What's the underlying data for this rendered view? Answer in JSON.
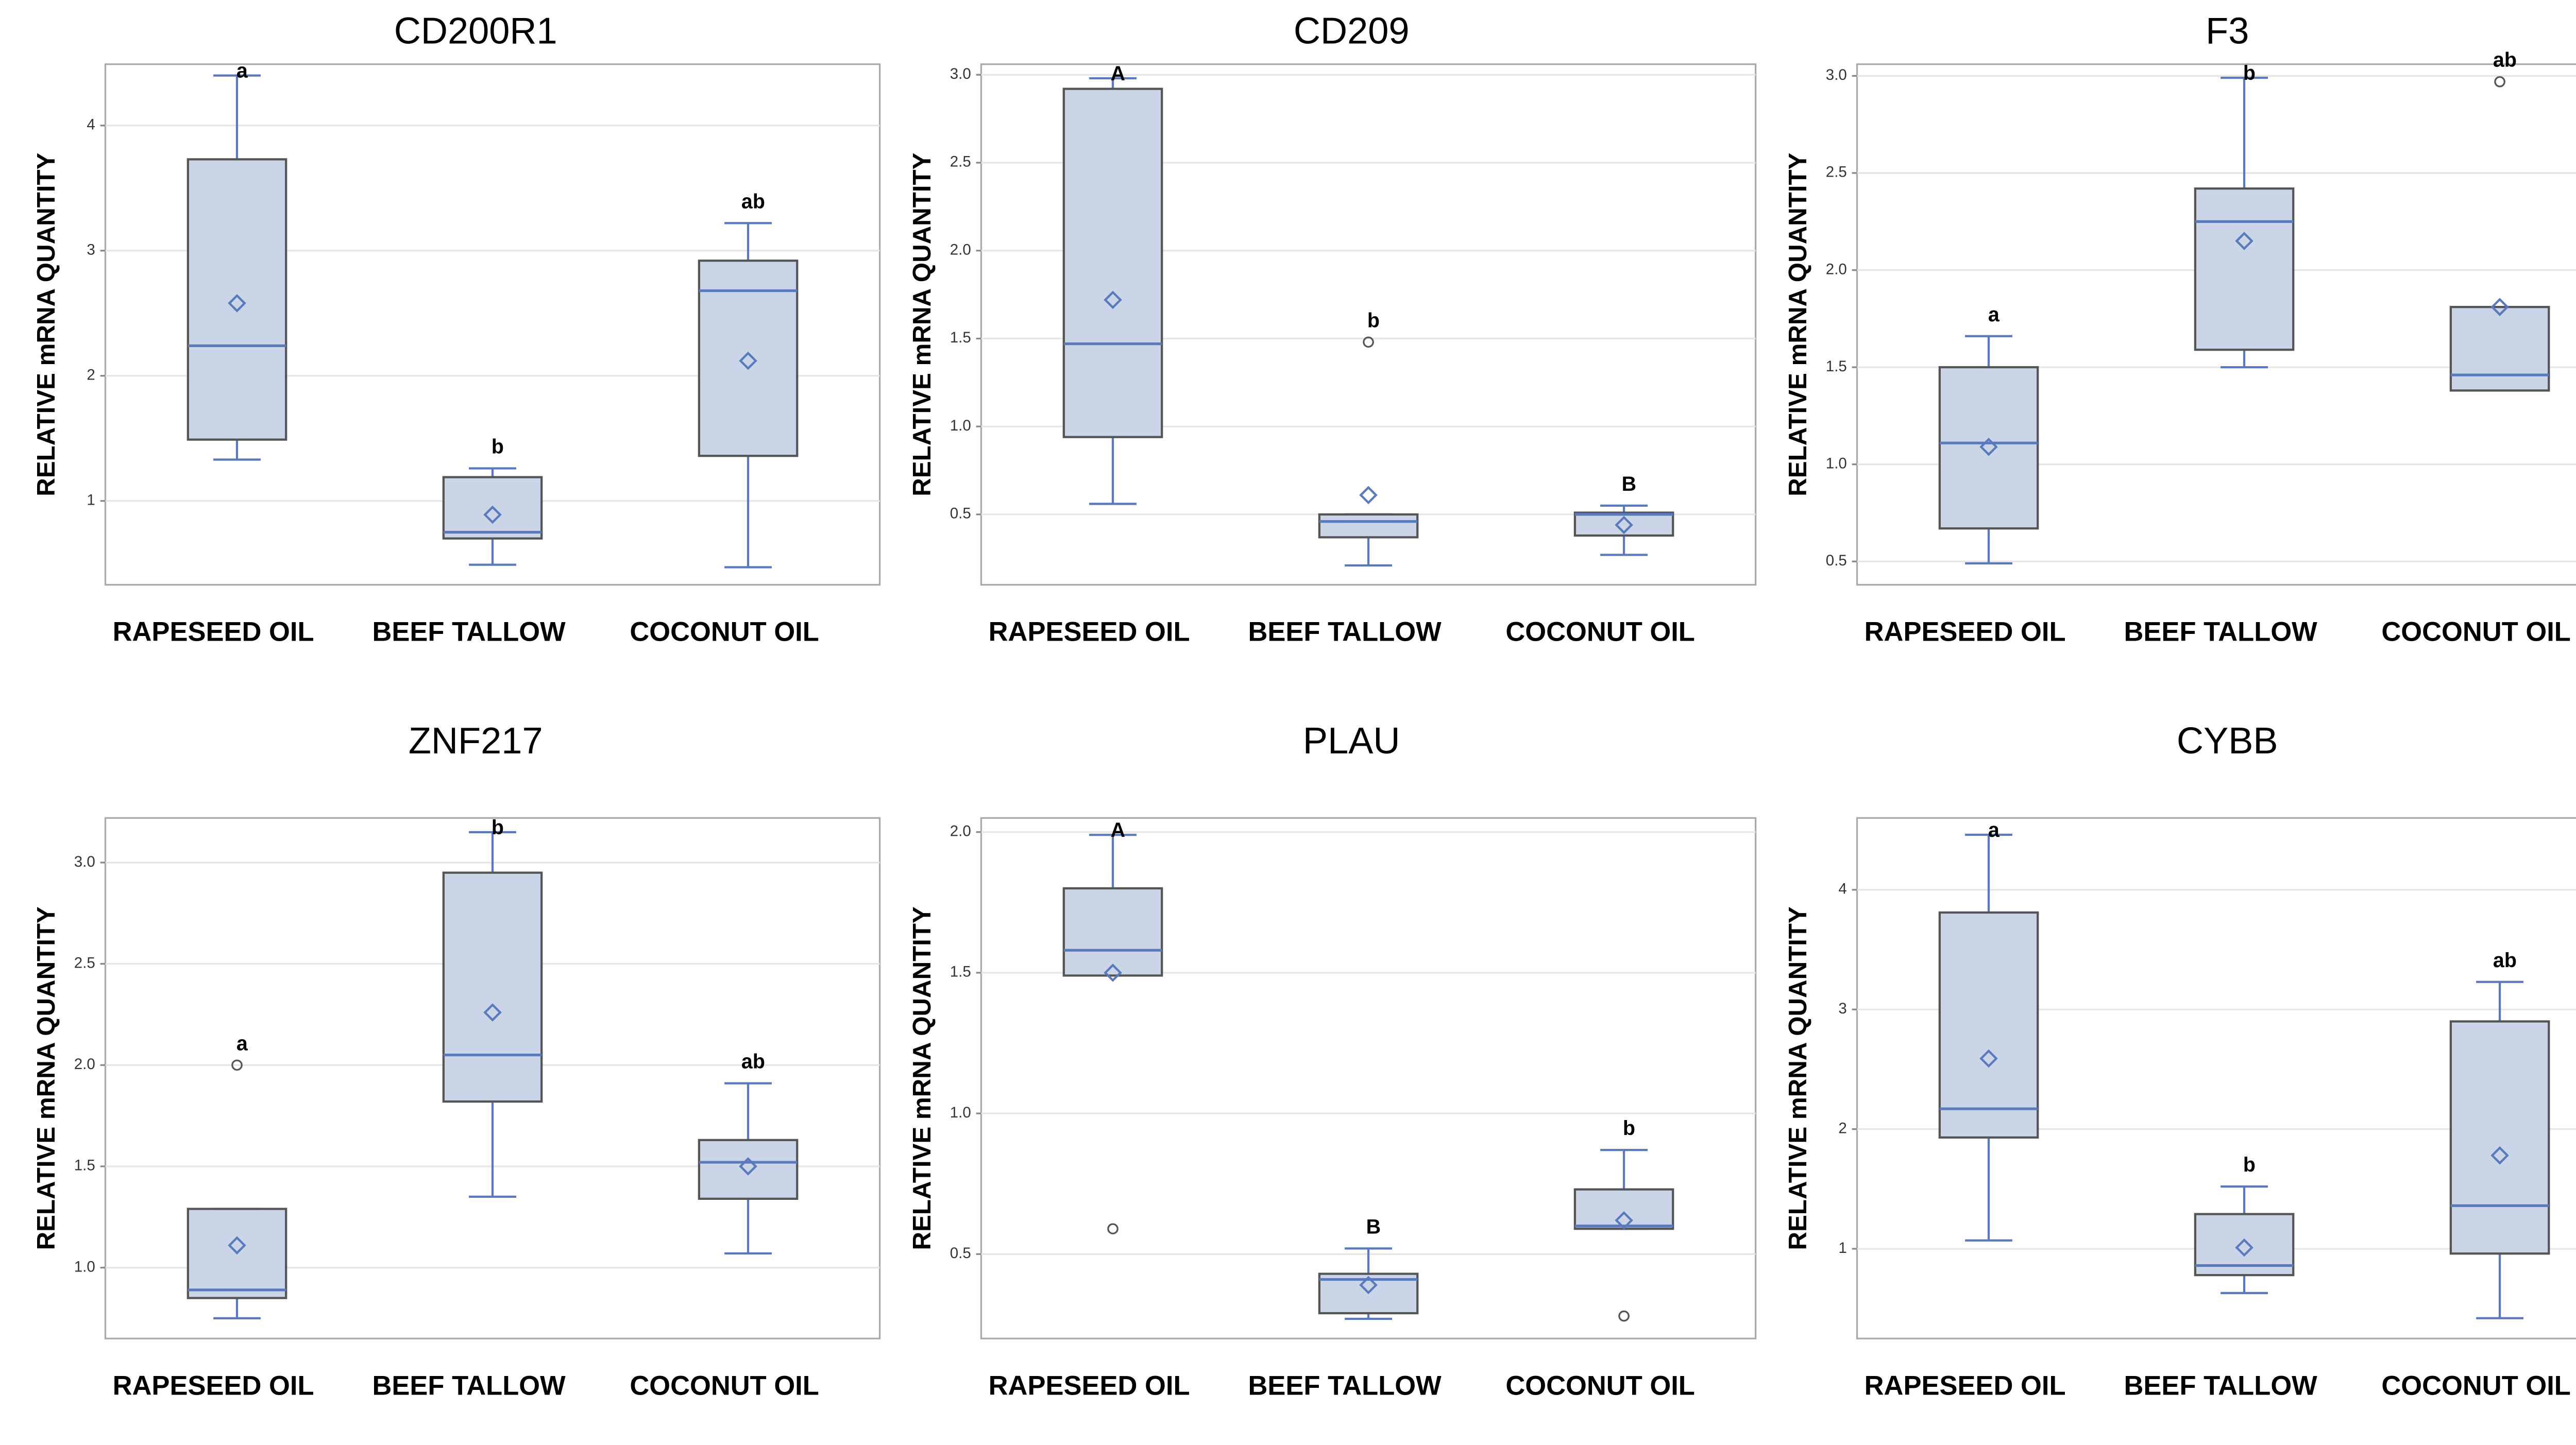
{
  "chart_data": [
    {
      "type": "box",
      "title": "CD200R1",
      "y_label": "RELATIVE mRNA QUANTITY",
      "categories": [
        "RAPESEED OIL",
        "BEEF TALLOW",
        "COCONUT OIL"
      ],
      "ylim": [
        0.33,
        4.49
      ],
      "yticks": [
        1,
        2,
        3,
        4
      ],
      "grid": true,
      "box_color": "#cad6e7",
      "line_color": "#5b79bd",
      "boxes": [
        {
          "low": 1.33,
          "q1": 1.49,
          "median": 2.24,
          "q3": 3.73,
          "high": 4.4,
          "mean": 2.58,
          "outliers": [],
          "letter": "a"
        },
        {
          "low": 0.49,
          "q1": 0.7,
          "median": 0.75,
          "q3": 1.19,
          "high": 1.26,
          "mean": 0.89,
          "outliers": [],
          "letter": "b"
        },
        {
          "low": 0.47,
          "q1": 1.36,
          "median": 2.68,
          "q3": 2.92,
          "high": 3.22,
          "mean": 2.12,
          "outliers": [],
          "letter": "ab"
        }
      ]
    },
    {
      "type": "box",
      "title": "CD209",
      "y_label": "RELATIVE mRNA QUANTITY",
      "categories": [
        "RAPESEED OIL",
        "BEEF TALLOW",
        "COCONUT OIL"
      ],
      "ylim": [
        0.1,
        3.06
      ],
      "yticks": [
        0.5,
        {
          "value": 1,
          "label": "1.0"
        },
        1.5,
        {
          "value": 2,
          "label": "2.0"
        },
        2.5,
        {
          "value": 3,
          "label": "3.0"
        }
      ],
      "grid": true,
      "box_color": "#cad6e7",
      "line_color": "#5b79bd",
      "boxes": [
        {
          "low": 0.56,
          "q1": 0.94,
          "median": 1.47,
          "q3": 2.92,
          "high": 2.98,
          "mean": 1.72,
          "outliers": [],
          "letter": "A"
        },
        {
          "low": 0.21,
          "q1": 0.37,
          "median": 0.46,
          "q3": 0.5,
          "high": 0.5,
          "mean": 0.61,
          "outliers": [
            1.48
          ],
          "letter": "b"
        },
        {
          "low": 0.27,
          "q1": 0.38,
          "median": 0.5,
          "q3": 0.51,
          "high": 0.55,
          "mean": 0.44,
          "outliers": [],
          "letter": "B"
        }
      ]
    },
    {
      "type": "box",
      "title": "F3",
      "y_label": "RELATIVE mRNA QUANTITY",
      "categories": [
        "RAPESEED OIL",
        "BEEF TALLOW",
        "COCONUT OIL"
      ],
      "ylim": [
        0.38,
        3.06
      ],
      "yticks": [
        0.5,
        {
          "value": 1,
          "label": "1.0"
        },
        1.5,
        {
          "value": 2,
          "label": "2.0"
        },
        2.5,
        {
          "value": 3,
          "label": "3.0"
        }
      ],
      "grid": true,
      "box_color": "#cad6e7",
      "line_color": "#5b79bd",
      "boxes": [
        {
          "low": 0.49,
          "q1": 0.67,
          "median": 1.11,
          "q3": 1.5,
          "high": 1.66,
          "mean": 1.09,
          "outliers": [],
          "letter": "a"
        },
        {
          "low": 1.5,
          "q1": 1.59,
          "median": 2.25,
          "q3": 2.42,
          "high": 2.99,
          "mean": 2.15,
          "outliers": [],
          "letter": "b"
        },
        {
          "low": 1.38,
          "q1": 1.38,
          "median": 1.46,
          "q3": 1.81,
          "high": 1.81,
          "mean": 1.81,
          "outliers": [
            2.97
          ],
          "letter": "ab"
        }
      ]
    },
    {
      "type": "box",
      "title": "ZNF217",
      "y_label": "RELATIVE mRNA QUANTITY",
      "categories": [
        "RAPESEED OIL",
        "BEEF TALLOW",
        "COCONUT OIL"
      ],
      "ylim": [
        0.65,
        3.22
      ],
      "yticks": [
        {
          "value": 1,
          "label": "1.0"
        },
        1.5,
        {
          "value": 2,
          "label": "2.0"
        },
        2.5,
        {
          "value": 3,
          "label": "3.0"
        }
      ],
      "grid": true,
      "box_color": "#cad6e7",
      "line_color": "#5b79bd",
      "boxes": [
        {
          "low": 0.75,
          "q1": 0.85,
          "median": 0.89,
          "q3": 1.29,
          "high": 1.29,
          "mean": 1.11,
          "outliers": [
            2.0
          ],
          "letter": "a"
        },
        {
          "low": 1.35,
          "q1": 1.82,
          "median": 2.05,
          "q3": 2.95,
          "high": 3.15,
          "mean": 2.26,
          "outliers": [],
          "letter": "b"
        },
        {
          "low": 1.07,
          "q1": 1.34,
          "median": 1.52,
          "q3": 1.63,
          "high": 1.91,
          "mean": 1.5,
          "outliers": [],
          "letter": "ab"
        }
      ]
    },
    {
      "type": "box",
      "title": "PLAU",
      "y_label": "RELATIVE mRNA QUANTITY",
      "categories": [
        "RAPESEED OIL",
        "BEEF TALLOW",
        "COCONUT OIL"
      ],
      "ylim": [
        0.2,
        2.05
      ],
      "yticks": [
        0.5,
        {
          "value": 1,
          "label": "1.0"
        },
        1.5,
        {
          "value": 2,
          "label": "2.0"
        }
      ],
      "grid": true,
      "box_color": "#cad6e7",
      "line_color": "#5b79bd",
      "boxes": [
        {
          "low": 1.49,
          "q1": 1.49,
          "median": 1.58,
          "q3": 1.8,
          "high": 1.99,
          "mean": 1.5,
          "outliers": [
            0.59
          ],
          "letter": "A"
        },
        {
          "low": 0.27,
          "q1": 0.29,
          "median": 0.41,
          "q3": 0.43,
          "high": 0.52,
          "mean": 0.39,
          "outliers": [],
          "letter": "B"
        },
        {
          "low": 0.59,
          "q1": 0.59,
          "median": 0.6,
          "q3": 0.73,
          "high": 0.87,
          "mean": 0.62,
          "outliers": [
            0.28
          ],
          "letter": "b"
        }
      ]
    },
    {
      "type": "box",
      "title": "CYBB",
      "y_label": "RELATIVE mRNA QUANTITY",
      "categories": [
        "RAPESEED OIL",
        "BEEF TALLOW",
        "COCONUT OIL"
      ],
      "ylim": [
        0.25,
        4.6
      ],
      "yticks": [
        1,
        2,
        3,
        4
      ],
      "grid": true,
      "box_color": "#cad6e7",
      "line_color": "#5b79bd",
      "boxes": [
        {
          "low": 1.07,
          "q1": 1.93,
          "median": 2.17,
          "q3": 3.81,
          "high": 4.46,
          "mean": 2.59,
          "outliers": [],
          "letter": "a"
        },
        {
          "low": 0.63,
          "q1": 0.78,
          "median": 0.86,
          "q3": 1.29,
          "high": 1.52,
          "mean": 1.01,
          "outliers": [],
          "letter": "b"
        },
        {
          "low": 0.42,
          "q1": 0.96,
          "median": 1.36,
          "q3": 2.9,
          "high": 3.23,
          "mean": 1.78,
          "outliers": [],
          "letter": "ab"
        }
      ]
    }
  ]
}
